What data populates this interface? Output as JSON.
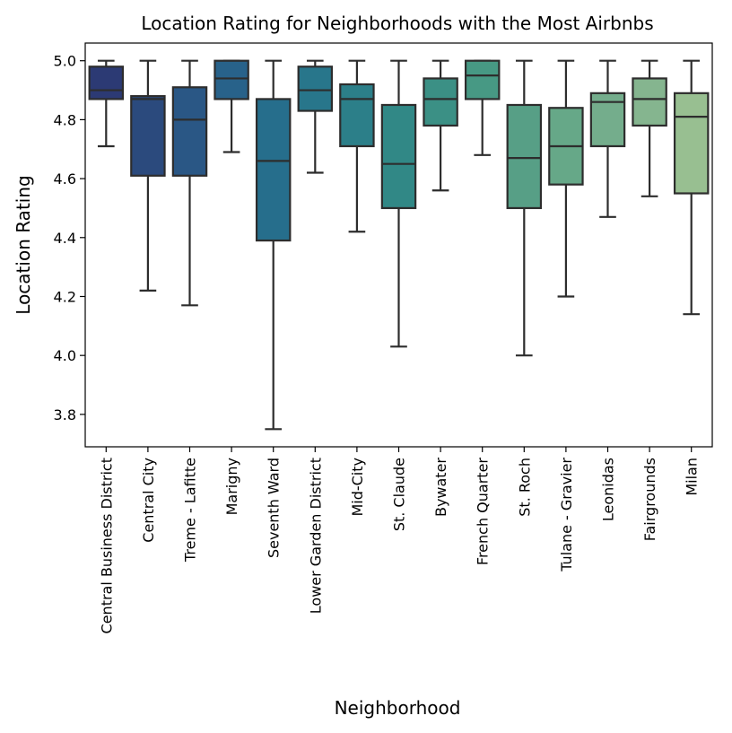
{
  "chart_data": {
    "type": "box",
    "title": "Location Rating for Neighborhoods with the Most Airbnbs",
    "xlabel": "Neighborhood",
    "ylabel": "Location Rating",
    "ylim": [
      3.69,
      5.06
    ],
    "yticks": [
      3.8,
      4.0,
      4.2,
      4.4,
      4.6,
      4.8,
      5.0
    ],
    "ytick_labels": [
      "3.8",
      "4.0",
      "4.2",
      "4.4",
      "4.6",
      "4.8",
      "5.0"
    ],
    "grid": false,
    "legend": "none",
    "categories": [
      "Central Business District",
      "Central City",
      "Treme - Lafitte",
      "Marigny",
      "Seventh Ward",
      "Lower Garden District",
      "Mid-City",
      "St. Claude",
      "Bywater",
      "French Quarter",
      "St. Roch",
      "Tulane - Gravier",
      "Leonidas",
      "Fairgrounds",
      "Milan"
    ],
    "boxes": [
      {
        "whisker_low": 4.71,
        "q1": 4.87,
        "median": 4.9,
        "q3": 4.98,
        "whisker_high": 5.0
      },
      {
        "whisker_low": 4.22,
        "q1": 4.61,
        "median": 4.87,
        "q3": 4.88,
        "whisker_high": 5.0
      },
      {
        "whisker_low": 4.17,
        "q1": 4.61,
        "median": 4.8,
        "q3": 4.91,
        "whisker_high": 5.0
      },
      {
        "whisker_low": 4.69,
        "q1": 4.87,
        "median": 4.94,
        "q3": 5.0,
        "whisker_high": 5.0
      },
      {
        "whisker_low": 3.75,
        "q1": 4.39,
        "median": 4.66,
        "q3": 4.87,
        "whisker_high": 5.0
      },
      {
        "whisker_low": 4.62,
        "q1": 4.83,
        "median": 4.9,
        "q3": 4.98,
        "whisker_high": 5.0
      },
      {
        "whisker_low": 4.42,
        "q1": 4.71,
        "median": 4.87,
        "q3": 4.92,
        "whisker_high": 5.0
      },
      {
        "whisker_low": 4.03,
        "q1": 4.5,
        "median": 4.65,
        "q3": 4.85,
        "whisker_high": 5.0
      },
      {
        "whisker_low": 4.56,
        "q1": 4.78,
        "median": 4.87,
        "q3": 4.94,
        "whisker_high": 5.0
      },
      {
        "whisker_low": 4.68,
        "q1": 4.87,
        "median": 4.95,
        "q3": 5.0,
        "whisker_high": 5.0
      },
      {
        "whisker_low": 4.0,
        "q1": 4.5,
        "median": 4.67,
        "q3": 4.85,
        "whisker_high": 5.0
      },
      {
        "whisker_low": 4.2,
        "q1": 4.58,
        "median": 4.71,
        "q3": 4.84,
        "whisker_high": 5.0
      },
      {
        "whisker_low": 4.47,
        "q1": 4.71,
        "median": 4.86,
        "q3": 4.89,
        "whisker_high": 5.0
      },
      {
        "whisker_low": 4.54,
        "q1": 4.78,
        "median": 4.87,
        "q3": 4.94,
        "whisker_high": 5.0
      },
      {
        "whisker_low": 4.14,
        "q1": 4.55,
        "median": 4.81,
        "q3": 4.89,
        "whisker_high": 5.0
      }
    ],
    "colors": [
      "#2c3a74",
      "#2b4a7d",
      "#2a5785",
      "#28628a",
      "#266e8c",
      "#28768b",
      "#2c7f89",
      "#318886",
      "#3b9085",
      "#479984",
      "#579f86",
      "#66a888",
      "#74ad8c",
      "#85b58f",
      "#98bf91"
    ],
    "line_color": "#2d2d2d"
  }
}
